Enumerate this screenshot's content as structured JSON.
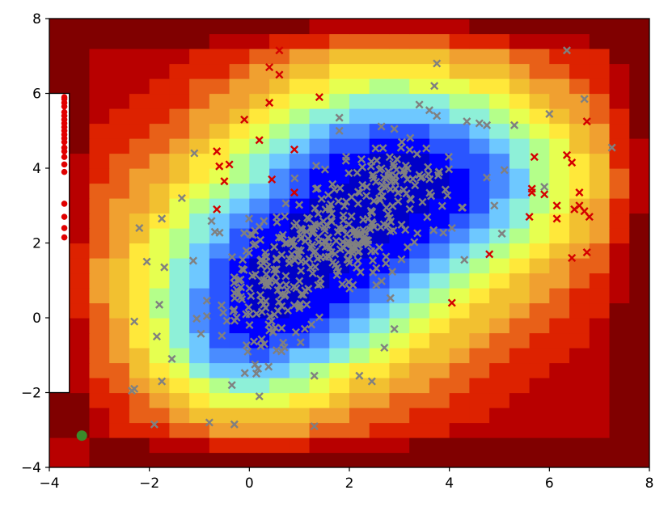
{
  "chart_data": {
    "type": "scatter",
    "title": "",
    "xlabel": "",
    "ylabel": "",
    "xlim": [
      -4,
      8
    ],
    "ylim": [
      -4,
      8
    ],
    "xticks": [
      -4,
      -2,
      0,
      2,
      4,
      6,
      8
    ],
    "yticks": [
      -4,
      -2,
      0,
      2,
      4,
      6,
      8
    ],
    "xtick_labels": [
      "−4",
      "−2",
      "0",
      "2",
      "4",
      "6",
      "8"
    ],
    "ytick_labels": [
      "−4",
      "−2",
      "0",
      "2",
      "4",
      "6",
      "8"
    ],
    "grid": false,
    "legend": "none",
    "background": "filled contour field (jet colormap): dark blue in the cluster center, through cyan, green, yellow, orange to dark red at the corners",
    "colors": {
      "gray_marker": "#808080",
      "red_marker": "#d40000",
      "red_dot": "#e00000",
      "green_dot": "#3a8a2a",
      "contour_levels": [
        "#0000c8",
        "#0000ff",
        "#2a55ff",
        "#4a8cff",
        "#6ec8ff",
        "#8ef0d8",
        "#b4ff8a",
        "#e6ff50",
        "#ffe83a",
        "#f2c030",
        "#f0a030",
        "#e86018",
        "#dd2200",
        "#b80000",
        "#800000"
      ]
    },
    "rectangle": {
      "x": [
        -4,
        -3.6
      ],
      "y": [
        -2,
        6
      ]
    },
    "green_point": {
      "x": -3.35,
      "y": -3.15
    },
    "red_dots": {
      "x": -3.7,
      "y": [
        5.9,
        5.85,
        5.75,
        5.65,
        5.5,
        5.4,
        5.3,
        5.2,
        5.1,
        5.0,
        4.9,
        4.8,
        4.7,
        4.55,
        4.45,
        4.3,
        4.1,
        3.9,
        3.05,
        2.7,
        2.4,
        2.15
      ]
    },
    "red_crosses": [
      [
        0.6,
        7.15
      ],
      [
        0.4,
        6.7
      ],
      [
        0.6,
        6.5
      ],
      [
        0.4,
        5.75
      ],
      [
        1.4,
        5.9
      ],
      [
        -0.1,
        5.3
      ],
      [
        0.2,
        4.75
      ],
      [
        0.9,
        4.5
      ],
      [
        -0.65,
        4.45
      ],
      [
        -0.6,
        4.05
      ],
      [
        -0.4,
        4.1
      ],
      [
        -0.5,
        3.65
      ],
      [
        0.45,
        3.7
      ],
      [
        0.9,
        3.35
      ],
      [
        -0.65,
        2.9
      ],
      [
        4.8,
        1.7
      ],
      [
        4.05,
        0.4
      ],
      [
        5.7,
        4.3
      ],
      [
        5.65,
        3.45
      ],
      [
        5.65,
        3.35
      ],
      [
        5.9,
        3.3
      ],
      [
        5.6,
        2.7
      ],
      [
        6.15,
        3.0
      ],
      [
        6.15,
        2.65
      ],
      [
        6.35,
        4.35
      ],
      [
        6.45,
        4.15
      ],
      [
        6.75,
        5.25
      ],
      [
        6.6,
        3.35
      ],
      [
        6.6,
        3.0
      ],
      [
        6.5,
        2.9
      ],
      [
        6.7,
        2.85
      ],
      [
        6.8,
        2.7
      ],
      [
        6.75,
        1.75
      ],
      [
        6.45,
        1.6
      ]
    ],
    "gray_crosses_outliers": [
      [
        6.35,
        7.15
      ],
      [
        3.75,
        6.8
      ],
      [
        3.7,
        6.2
      ],
      [
        6.7,
        5.85
      ],
      [
        6.0,
        5.45
      ],
      [
        7.25,
        4.55
      ],
      [
        5.3,
        5.15
      ],
      [
        4.6,
        5.2
      ],
      [
        4.75,
        5.15
      ],
      [
        3.4,
        5.7
      ],
      [
        3.6,
        5.55
      ],
      [
        3.75,
        5.4
      ],
      [
        4.35,
        5.25
      ],
      [
        1.8,
        5.35
      ],
      [
        1.8,
        5.0
      ],
      [
        2.9,
        5.05
      ],
      [
        3.05,
        4.7
      ],
      [
        -1.1,
        4.4
      ],
      [
        -1.35,
        3.2
      ],
      [
        -1.75,
        2.65
      ],
      [
        -2.2,
        2.4
      ],
      [
        -2.05,
        1.5
      ],
      [
        -1.7,
        1.35
      ],
      [
        -1.8,
        0.35
      ],
      [
        -2.3,
        -0.1
      ],
      [
        -1.85,
        -0.5
      ],
      [
        -1.55,
        -1.1
      ],
      [
        -1.75,
        -1.7
      ],
      [
        -2.3,
        -1.9
      ],
      [
        -2.35,
        -1.95
      ],
      [
        -1.9,
        -2.85
      ],
      [
        -0.8,
        -2.8
      ],
      [
        -0.3,
        -2.85
      ],
      [
        1.3,
        -2.9
      ],
      [
        1.3,
        -1.55
      ],
      [
        2.2,
        -1.55
      ],
      [
        2.45,
        -1.7
      ],
      [
        2.9,
        -0.3
      ],
      [
        2.7,
        -0.8
      ],
      [
        4.3,
        1.55
      ],
      [
        4.05,
        2.4
      ],
      [
        5.05,
        2.25
      ],
      [
        4.9,
        3.0
      ],
      [
        4.75,
        3.75
      ],
      [
        5.1,
        3.95
      ],
      [
        5.9,
        3.5
      ],
      [
        0.2,
        -2.1
      ],
      [
        -0.35,
        -1.8
      ]
    ],
    "gray_cluster_region": {
      "x": [
        -1.2,
        4.5
      ],
      "y": [
        -2.5,
        5.2
      ],
      "count": 420
    },
    "contour_grid": {
      "x": [
        -4,
        -3.6,
        -3.2,
        -2.8,
        -2.4,
        -2,
        -1.6,
        -1.2,
        -0.8,
        -0.4,
        0,
        0.4,
        0.8,
        1.2,
        1.6,
        2,
        2.4,
        2.8,
        3.2,
        3.6,
        4,
        4.4,
        4.8,
        5.2,
        5.6,
        6,
        6.4,
        6.8,
        7.2,
        7.6,
        8
      ],
      "y": [
        -4,
        -3.6,
        -3.2,
        -2.8,
        -2.4,
        -2,
        -1.6,
        -1.2,
        -0.8,
        -0.4,
        0,
        0.4,
        0.8,
        1.2,
        1.6,
        2,
        2.4,
        2.8,
        3.2,
        3.6,
        4,
        4.4,
        4.8,
        5.2,
        5.6,
        6,
        6.4,
        6.8,
        7.2,
        7.6,
        8
      ]
    }
  }
}
